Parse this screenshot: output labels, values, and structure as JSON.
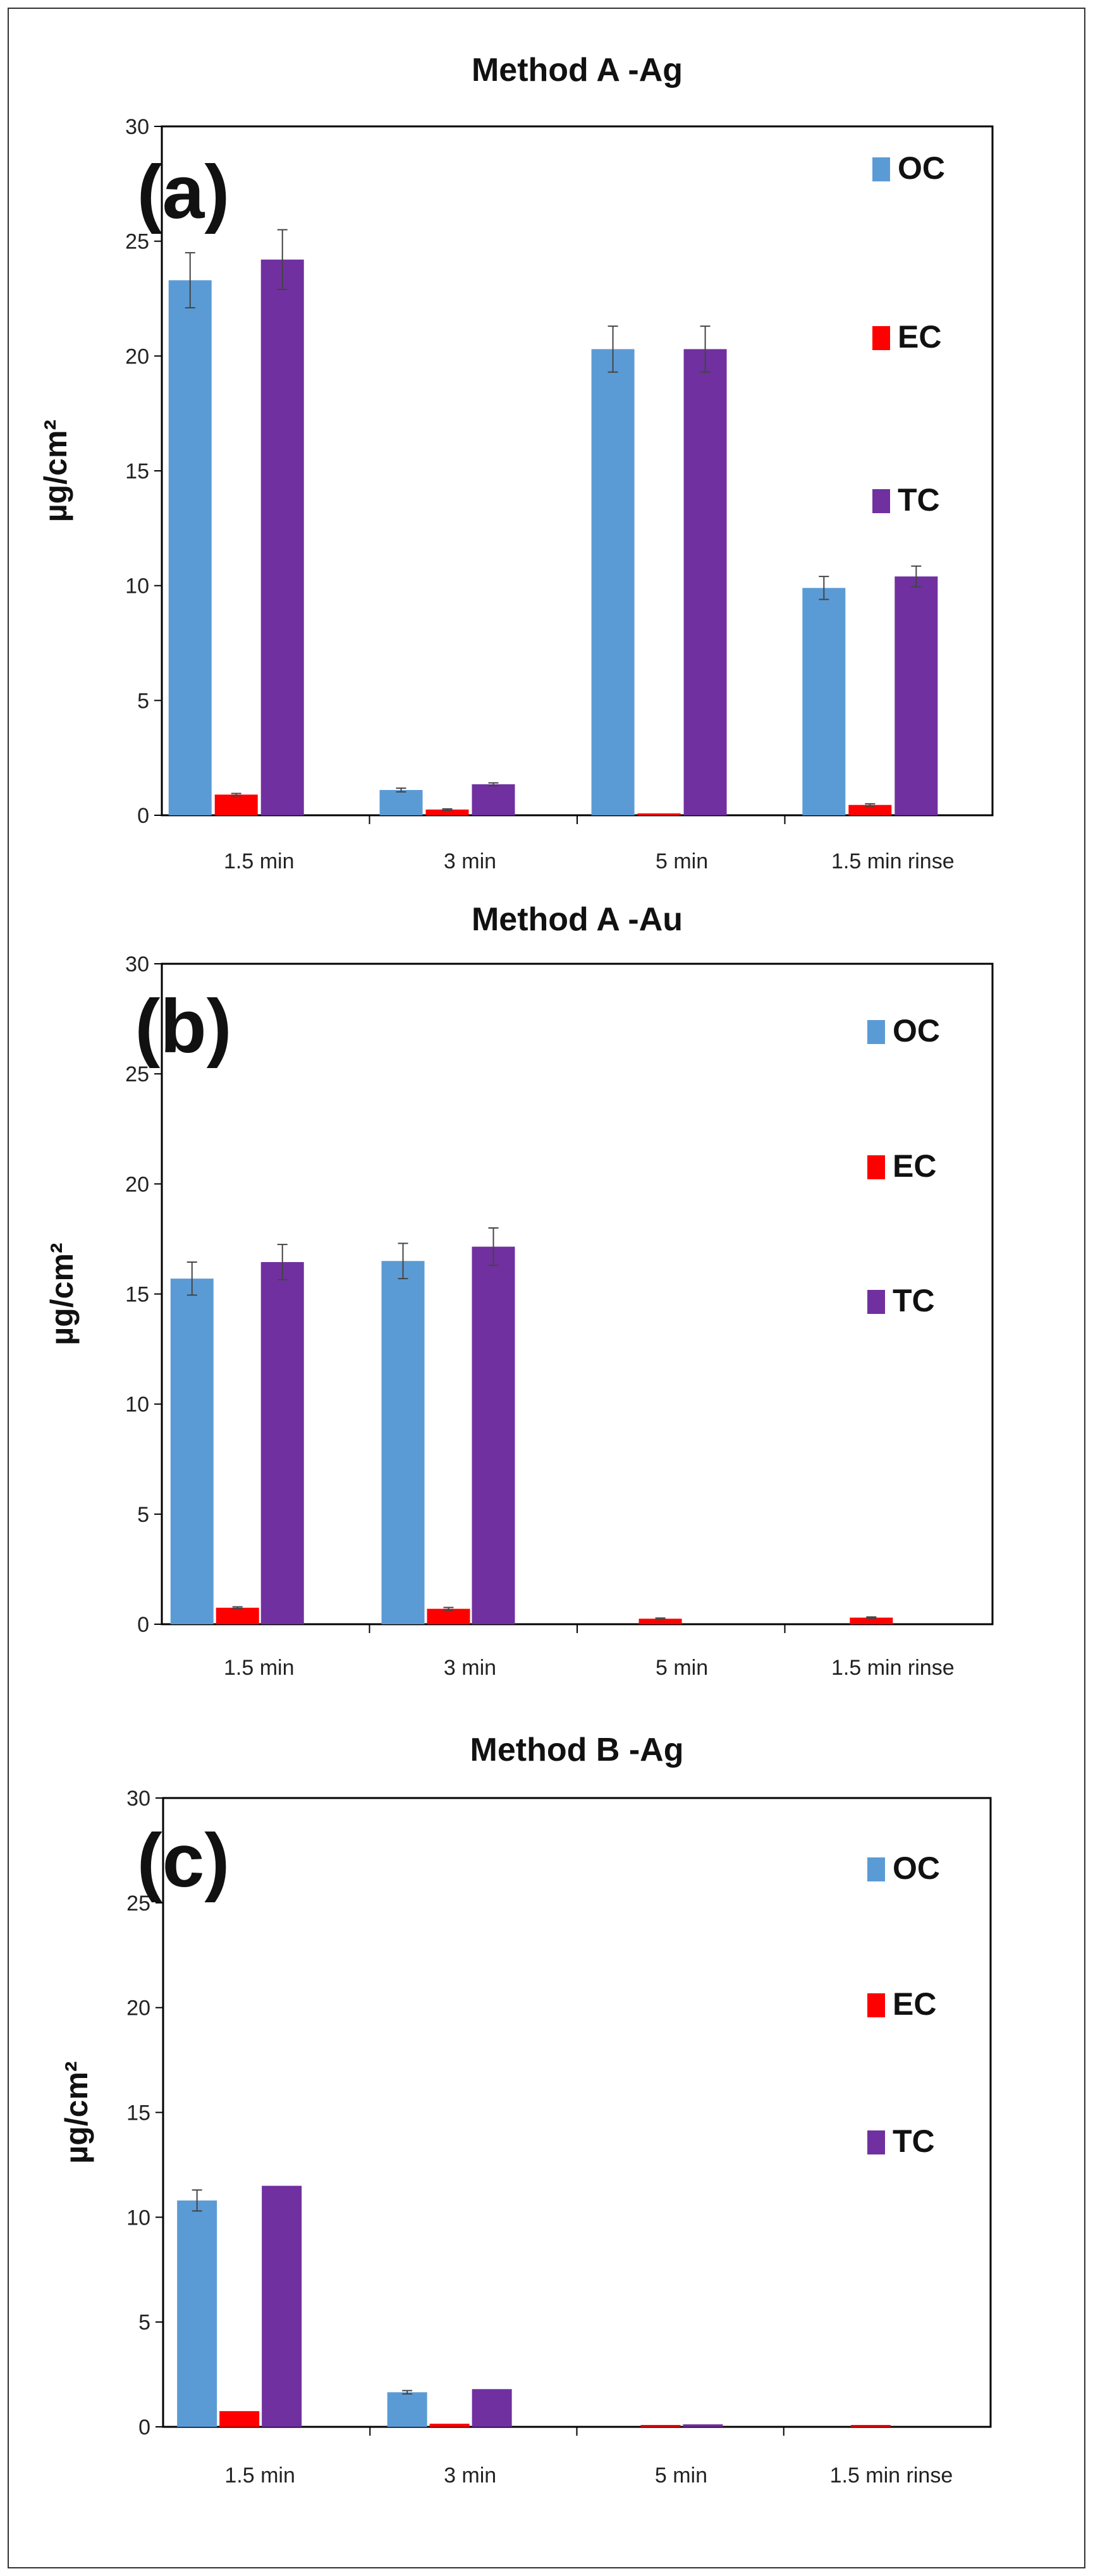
{
  "chart_data": [
    {
      "type": "bar",
      "title": "Method A -Ag",
      "panel_label": "(a)",
      "ylabel": "µg/cm²",
      "xlabel": "",
      "ylim": [
        0,
        30
      ],
      "yticks": [
        0,
        5,
        10,
        15,
        20,
        25,
        30
      ],
      "grid": false,
      "legend_position": "right",
      "categories": [
        "1.5 min",
        "3 min",
        "5 min",
        "1.5 min rinse"
      ],
      "series": [
        {
          "name": "OC",
          "color": "#5B9BD5",
          "values": [
            23.3,
            1.1,
            20.3,
            9.9
          ],
          "errors": [
            1.2,
            0.08,
            1.0,
            0.5
          ]
        },
        {
          "name": "EC",
          "color": "#FF0000",
          "values": [
            0.9,
            0.25,
            0.05,
            0.45
          ],
          "errors": [
            0.05,
            0.03,
            0.0,
            0.05
          ]
        },
        {
          "name": "TC",
          "color": "#7030A0",
          "values": [
            24.2,
            1.35,
            20.3,
            10.4
          ],
          "errors": [
            1.3,
            0.06,
            1.0,
            0.45
          ]
        }
      ]
    },
    {
      "type": "bar",
      "title": "Method A -Au",
      "panel_label": "(b)",
      "ylabel": "µg/cm²",
      "xlabel": "",
      "ylim": [
        0,
        30
      ],
      "yticks": [
        0,
        5,
        10,
        15,
        20,
        25,
        30
      ],
      "grid": false,
      "legend_position": "right",
      "categories": [
        "1.5 min",
        "3 min",
        "5 min",
        "1.5 min rinse"
      ],
      "series": [
        {
          "name": "OC",
          "color": "#5B9BD5",
          "values": [
            15.7,
            16.5,
            0,
            0
          ],
          "errors": [
            0.75,
            0.8,
            0,
            0
          ]
        },
        {
          "name": "EC",
          "color": "#FF0000",
          "values": [
            0.75,
            0.7,
            0.25,
            0.3
          ],
          "errors": [
            0.04,
            0.06,
            0.03,
            0.03
          ]
        },
        {
          "name": "TC",
          "color": "#7030A0",
          "values": [
            16.45,
            17.15,
            0,
            0
          ],
          "errors": [
            0.8,
            0.85,
            0,
            0
          ]
        }
      ]
    },
    {
      "type": "bar",
      "title": "Method B -Ag",
      "panel_label": "(c)",
      "ylabel": "µg/cm²",
      "xlabel": "",
      "ylim": [
        0,
        30
      ],
      "yticks": [
        0,
        5,
        10,
        15,
        20,
        25,
        30
      ],
      "grid": false,
      "legend_position": "right",
      "categories": [
        "1.5 min",
        "3 min",
        "5 min",
        "1.5 min rinse"
      ],
      "series": [
        {
          "name": "OC",
          "color": "#5B9BD5",
          "values": [
            10.8,
            1.65,
            0,
            0
          ],
          "errors": [
            0.5,
            0.08,
            0,
            0
          ]
        },
        {
          "name": "EC",
          "color": "#FF0000",
          "values": [
            0.75,
            0.15,
            0.08,
            0.05
          ],
          "errors": [
            0,
            0,
            0,
            0
          ]
        },
        {
          "name": "TC",
          "color": "#7030A0",
          "values": [
            11.5,
            1.8,
            0.12,
            0
          ],
          "errors": [
            0,
            0,
            0,
            0
          ]
        }
      ]
    }
  ]
}
